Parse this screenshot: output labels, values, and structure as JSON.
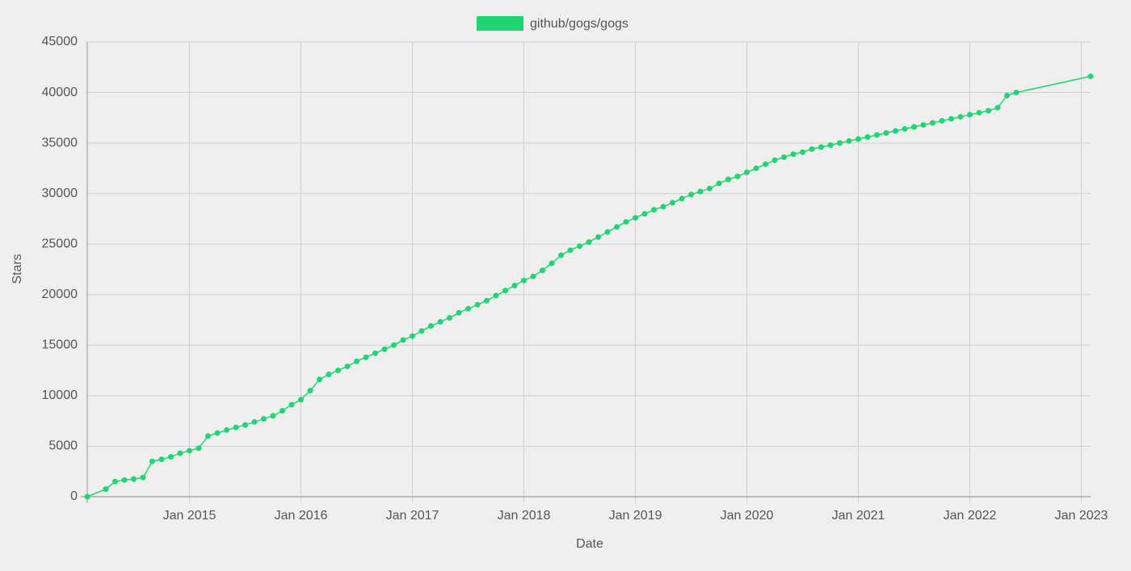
{
  "chart_data": {
    "type": "line",
    "xlabel": "Date",
    "ylabel": "Stars",
    "x": [
      "2014-02",
      "2014-04",
      "2014-05",
      "2014-06",
      "2014-07",
      "2014-08",
      "2014-09",
      "2014-10",
      "2014-11",
      "2014-12",
      "2015-01",
      "2015-02",
      "2015-03",
      "2015-04",
      "2015-05",
      "2015-06",
      "2015-07",
      "2015-08",
      "2015-09",
      "2015-10",
      "2015-11",
      "2015-12",
      "2016-01",
      "2016-02",
      "2016-03",
      "2016-04",
      "2016-05",
      "2016-06",
      "2016-07",
      "2016-08",
      "2016-09",
      "2016-10",
      "2016-11",
      "2016-12",
      "2017-01",
      "2017-02",
      "2017-03",
      "2017-04",
      "2017-05",
      "2017-06",
      "2017-07",
      "2017-08",
      "2017-09",
      "2017-10",
      "2017-11",
      "2017-12",
      "2018-01",
      "2018-02",
      "2018-03",
      "2018-04",
      "2018-05",
      "2018-06",
      "2018-07",
      "2018-08",
      "2018-09",
      "2018-10",
      "2018-11",
      "2018-12",
      "2019-01",
      "2019-02",
      "2019-03",
      "2019-04",
      "2019-05",
      "2019-06",
      "2019-07",
      "2019-08",
      "2019-09",
      "2019-10",
      "2019-11",
      "2019-12",
      "2020-01",
      "2020-02",
      "2020-03",
      "2020-04",
      "2020-05",
      "2020-06",
      "2020-07",
      "2020-08",
      "2020-09",
      "2020-10",
      "2020-11",
      "2020-12",
      "2021-01",
      "2021-02",
      "2021-03",
      "2021-04",
      "2021-05",
      "2021-06",
      "2021-07",
      "2021-08",
      "2021-09",
      "2021-10",
      "2021-11",
      "2021-12",
      "2022-01",
      "2022-02",
      "2022-03",
      "2022-04",
      "2022-05",
      "2022-06",
      "2023-02"
    ],
    "series": [
      {
        "name": "github/gogs/gogs",
        "color": "#20d672",
        "values": [
          0,
          750,
          1500,
          1650,
          1750,
          1900,
          3500,
          3700,
          3950,
          4300,
          4550,
          4800,
          6000,
          6300,
          6600,
          6850,
          7100,
          7400,
          7700,
          8000,
          8500,
          9100,
          9600,
          10500,
          11600,
          12100,
          12500,
          12900,
          13400,
          13800,
          14200,
          14600,
          15000,
          15500,
          15900,
          16400,
          16900,
          17300,
          17700,
          18200,
          18600,
          19000,
          19400,
          19900,
          20400,
          20900,
          21400,
          21800,
          22400,
          23100,
          23900,
          24400,
          24800,
          25200,
          25700,
          26200,
          26700,
          27200,
          27600,
          28000,
          28400,
          28700,
          29100,
          29500,
          29900,
          30200,
          30500,
          31000,
          31400,
          31700,
          32100,
          32500,
          32900,
          33300,
          33600,
          33900,
          34100,
          34400,
          34600,
          34800,
          35000,
          35200,
          35400,
          35600,
          35800,
          36000,
          36200,
          36400,
          36600,
          36800,
          37000,
          37200,
          37400,
          37600,
          37800,
          38000,
          38200,
          38500,
          39700,
          40000,
          41600
        ]
      }
    ],
    "xlim": [
      "2014-02",
      "2023-02"
    ],
    "xticks": [
      {
        "value": "2015-01",
        "label": "Jan 2015"
      },
      {
        "value": "2016-01",
        "label": "Jan 2016"
      },
      {
        "value": "2017-01",
        "label": "Jan 2017"
      },
      {
        "value": "2018-01",
        "label": "Jan 2018"
      },
      {
        "value": "2019-01",
        "label": "Jan 2019"
      },
      {
        "value": "2020-01",
        "label": "Jan 2020"
      },
      {
        "value": "2021-01",
        "label": "Jan 2021"
      },
      {
        "value": "2022-01",
        "label": "Jan 2022"
      },
      {
        "value": "2023-01",
        "label": "Jan 2023"
      }
    ],
    "ylim": [
      0,
      45000
    ],
    "yticks": [
      0,
      5000,
      10000,
      15000,
      20000,
      25000,
      30000,
      35000,
      40000,
      45000
    ],
    "grid": true,
    "legend": "top"
  }
}
